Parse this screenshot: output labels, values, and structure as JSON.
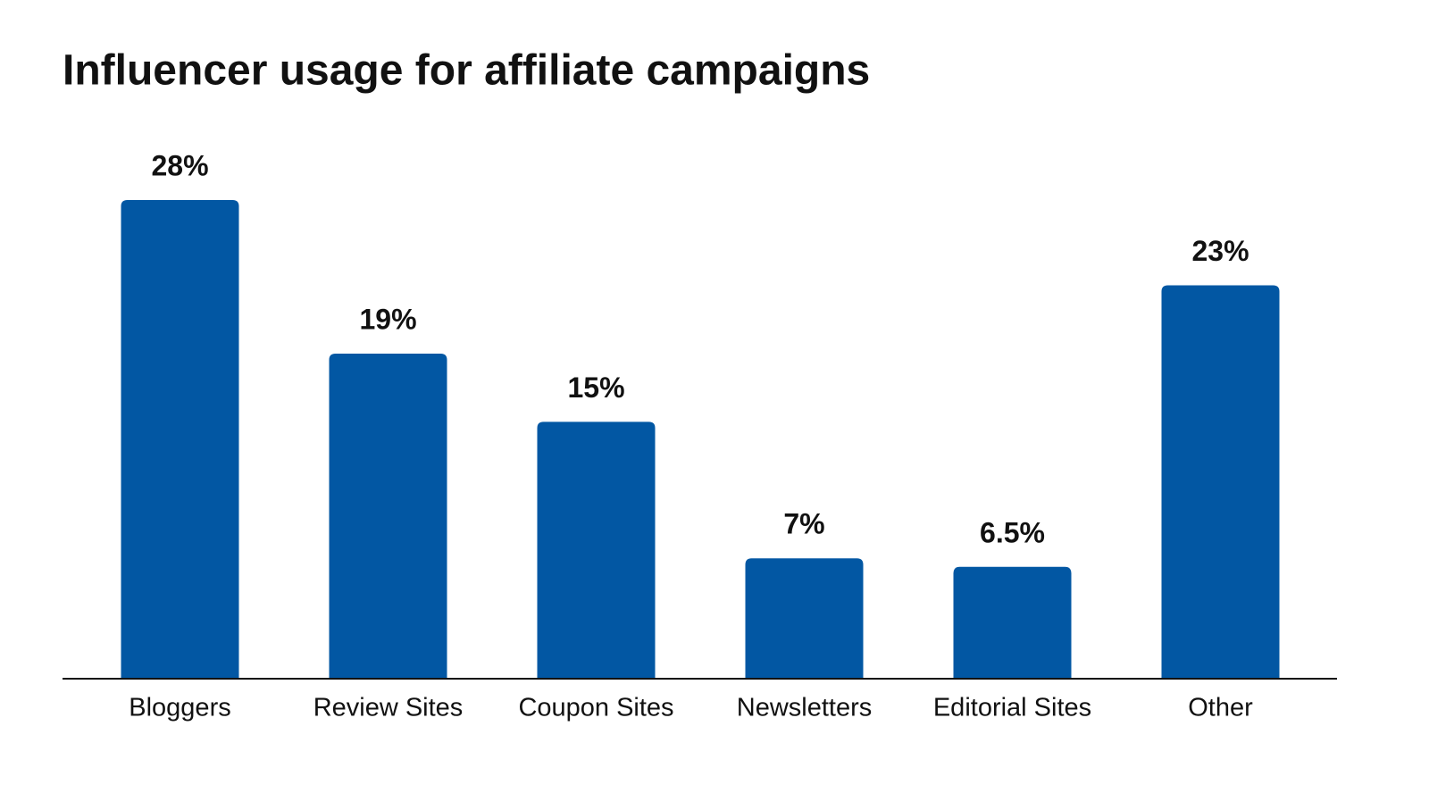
{
  "chart_data": {
    "type": "bar",
    "title": "Influencer usage for affiliate campaigns",
    "categories": [
      "Bloggers",
      "Review Sites",
      "Coupon Sites",
      "Newsletters",
      "Editorial Sites",
      "Other"
    ],
    "values": [
      28,
      19,
      15,
      7,
      6.5,
      23
    ],
    "value_labels": [
      "28%",
      "19%",
      "15%",
      "7%",
      "6.5%",
      "23%"
    ],
    "color": "#0257a3"
  }
}
